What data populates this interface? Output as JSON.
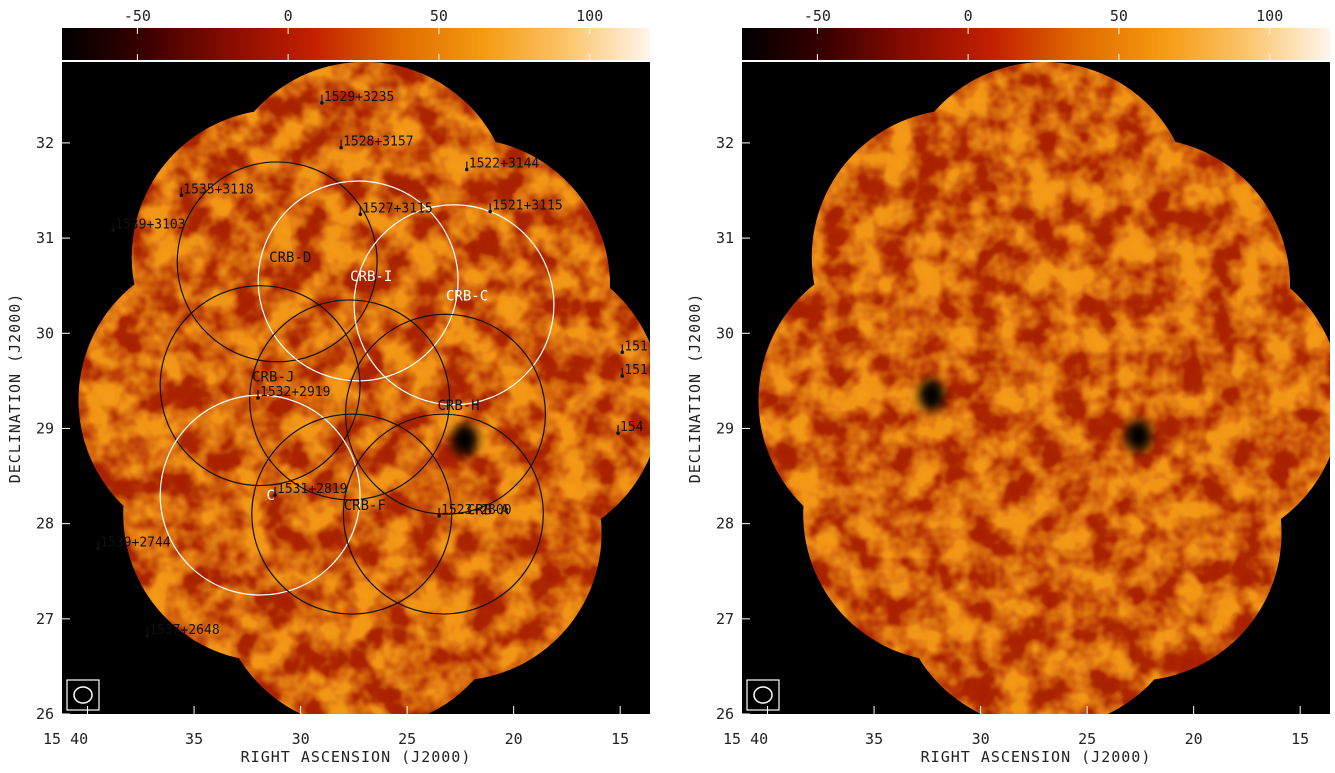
{
  "colorbar": {
    "ticks": [
      "-50",
      "0",
      "50",
      "100"
    ],
    "tick_values": [
      -50,
      0,
      50,
      100
    ],
    "range": [
      -75,
      120
    ],
    "colors": [
      "#000000",
      "#3a0000",
      "#8a0c00",
      "#c42000",
      "#e06a00",
      "#f59a10",
      "#fbc46a",
      "#fff6ec"
    ]
  },
  "axes": {
    "xlabel": "RIGHT ASCENSION (J2000)",
    "ylabel": "DECLINATION (J2000)",
    "x_ticks": [
      "15 40",
      "35",
      "30",
      "25",
      "20",
      "15"
    ],
    "x_tick_values": [
      40,
      35,
      30,
      25,
      20,
      15
    ],
    "y_ticks": [
      "32",
      "31",
      "30",
      "29",
      "28",
      "27",
      "26"
    ],
    "y_tick_values": [
      32,
      31,
      30,
      29,
      28,
      27,
      26
    ],
    "xlim": [
      41.2,
      13.6
    ],
    "ylim": [
      26.0,
      32.85
    ]
  },
  "panels": [
    {
      "name": "left-map"
    },
    {
      "name": "right-map"
    }
  ],
  "fields": [
    {
      "label": "CRB-D",
      "ra": 31.1,
      "dec": 30.75,
      "radius_deg": 1.05,
      "color": "black",
      "label_color": "black"
    },
    {
      "label": "CRB-I",
      "ra": 27.3,
      "dec": 30.55,
      "radius_deg": 1.05,
      "color": "white",
      "label_color": "white"
    },
    {
      "label": "CRB-C",
      "ra": 22.8,
      "dec": 30.3,
      "radius_deg": 1.05,
      "color": "white",
      "label_color": "white"
    },
    {
      "label": "CRB-J",
      "ra": 31.9,
      "dec": 29.45,
      "radius_deg": 1.05,
      "color": "black",
      "label_color": "black"
    },
    {
      "label": "",
      "ra": 27.7,
      "dec": 29.3,
      "radius_deg": 1.05,
      "color": "black",
      "label_color": "black"
    },
    {
      "label": "CRB-H",
      "ra": 23.2,
      "dec": 29.15,
      "radius_deg": 1.05,
      "color": "black",
      "label_color": "black"
    },
    {
      "label": "",
      "ra": 31.9,
      "dec": 28.3,
      "radius_deg": 1.05,
      "color": "white",
      "label_color": "white"
    },
    {
      "label": "CRB-F",
      "ra": 27.6,
      "dec": 28.1,
      "radius_deg": 1.05,
      "color": "black",
      "label_color": "black"
    },
    {
      "label": "",
      "ra": 23.3,
      "dec": 28.1,
      "radius_deg": 1.05,
      "color": "black",
      "label_color": "black"
    }
  ],
  "field_labels_extra": [
    {
      "label": "C",
      "ra": 31.6,
      "dec": 28.3,
      "color": "white"
    },
    {
      "label": "CRB-A",
      "ra": 22.2,
      "dec": 28.15,
      "color": "black"
    }
  ],
  "sources": [
    {
      "label": "1529+3235",
      "ra": 29.0,
      "dec": 32.42
    },
    {
      "label": "1528+3157",
      "ra": 28.1,
      "dec": 31.95
    },
    {
      "label": "1522+3144",
      "ra": 22.2,
      "dec": 31.72
    },
    {
      "label": "1535+3118",
      "ra": 35.6,
      "dec": 31.45
    },
    {
      "label": "1527+3115",
      "ra": 27.2,
      "dec": 31.25
    },
    {
      "label": "1521+3115",
      "ra": 21.1,
      "dec": 31.28
    },
    {
      "label": "1539+3103",
      "ra": 38.8,
      "dec": 31.08
    },
    {
      "label": "1532+2919",
      "ra": 32.0,
      "dec": 29.32
    },
    {
      "label": "1531+2819",
      "ra": 31.2,
      "dec": 28.3
    },
    {
      "label": "1523+2800",
      "ra": 23.5,
      "dec": 28.08
    },
    {
      "label": "1539+2744",
      "ra": 39.5,
      "dec": 27.74
    },
    {
      "label": "1537+2648",
      "ra": 37.2,
      "dec": 26.82
    },
    {
      "label": "151",
      "ra": 14.9,
      "dec": 29.8
    },
    {
      "label": "151",
      "ra": 14.9,
      "dec": 29.55
    },
    {
      "label": "154",
      "ra": 15.1,
      "dec": 28.95
    }
  ],
  "cold_spots": [
    {
      "panel": 0,
      "ra": 22.3,
      "dec": 28.88
    },
    {
      "panel": 1,
      "ra": 22.6,
      "dec": 28.92
    },
    {
      "panel": 1,
      "ra": 32.3,
      "dec": 29.35
    }
  ]
}
